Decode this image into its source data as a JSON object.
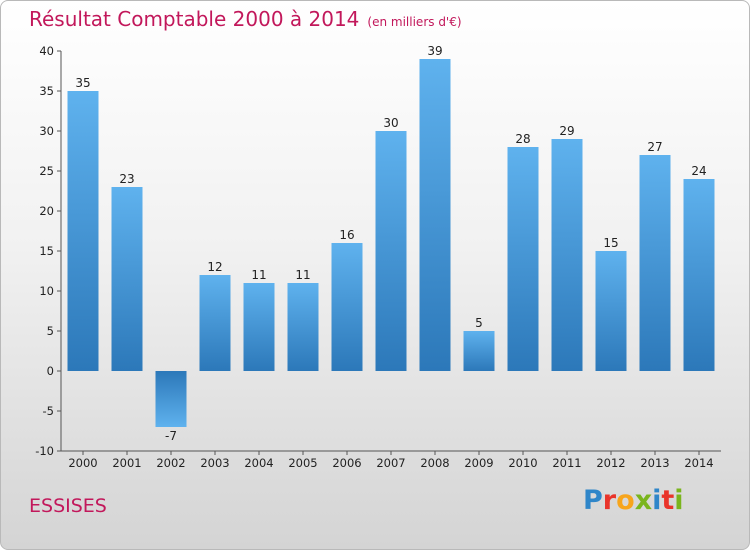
{
  "chart_data": {
    "type": "bar",
    "title": "Résultat Comptable 2000 à 2014",
    "subtitle": "(en milliers d'€)",
    "categories": [
      "2000",
      "2001",
      "2002",
      "2003",
      "2004",
      "2005",
      "2006",
      "2007",
      "2008",
      "2009",
      "2010",
      "2011",
      "2012",
      "2013",
      "2014"
    ],
    "values": [
      35,
      23,
      -7,
      12,
      11,
      11,
      16,
      30,
      39,
      5,
      28,
      29,
      15,
      27,
      24
    ],
    "ylim": [
      -10,
      40
    ],
    "yticks": [
      -10,
      -5,
      0,
      5,
      10,
      15,
      20,
      25,
      30,
      35,
      40
    ],
    "xlabel": "",
    "ylabel": "",
    "grid": false,
    "bar_color": "#3d8fd6"
  },
  "footer": {
    "commune": "ESSISES",
    "logo_letters": [
      "P",
      "r",
      "o",
      "x",
      "i",
      "t",
      "i"
    ],
    "logo_colors": [
      "#2f86c9",
      "#e9342a",
      "#f7a51c",
      "#7ab51d",
      "#2f86c9",
      "#e9342a",
      "#7ab51d"
    ]
  }
}
